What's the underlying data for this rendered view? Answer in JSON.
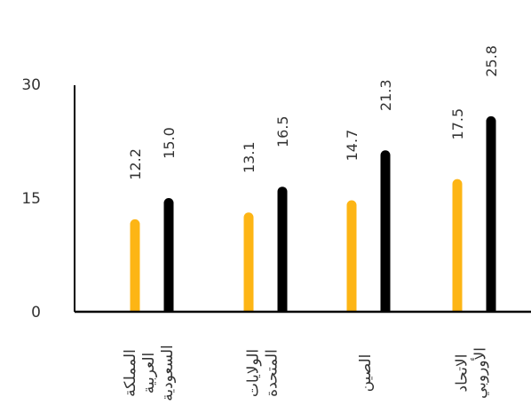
{
  "chart_data": {
    "type": "bar",
    "title": "",
    "xlabel": "",
    "ylabel": "",
    "categories": [
      [
        "المملكة",
        "العربية",
        "السعودية"
      ],
      [
        "الولايات",
        "المتحدة"
      ],
      [
        "الصين"
      ],
      [
        "الاتحاد",
        "الأوروبي"
      ]
    ],
    "series": [
      {
        "color": "#FDB515",
        "values": [
          12.2,
          13.1,
          14.7,
          17.5
        ]
      },
      {
        "color": "#000000",
        "values": [
          15.0,
          16.5,
          21.3,
          25.8
        ]
      }
    ],
    "data_labels": [
      [
        "12.2",
        "13.1",
        "14.7",
        "17.5"
      ],
      [
        "15.0",
        "16.5",
        "21.3",
        "25.8"
      ]
    ],
    "yticks": [
      "0",
      "15",
      "30"
    ],
    "ylim": [
      0,
      30
    ],
    "grid": false,
    "legend": "none",
    "bar_style": "rounded thin columns",
    "label_orientation": "vertical"
  }
}
